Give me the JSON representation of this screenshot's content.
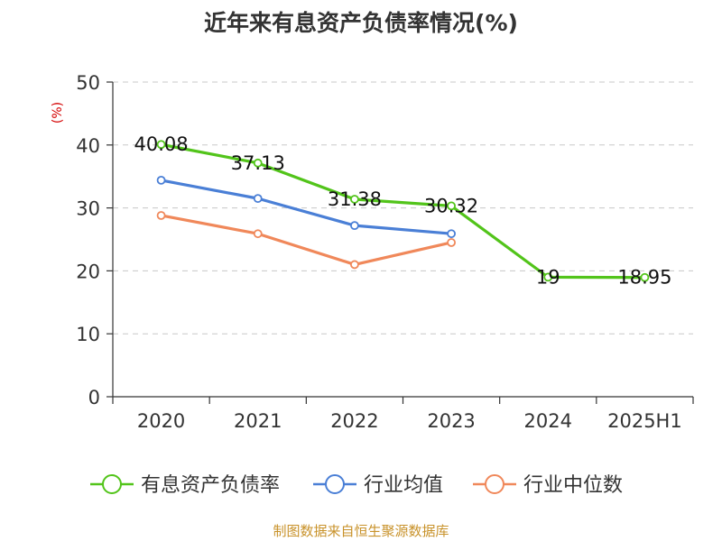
{
  "title": "近年来有息资产负债率情况(%)",
  "source": "制图数据来自恒生聚源数据库",
  "chart_data": {
    "type": "line",
    "categories": [
      "2020",
      "2021",
      "2022",
      "2023",
      "2024",
      "2025H1"
    ],
    "y_unit_label": "(%)",
    "ylim": [
      0,
      50
    ],
    "yticks": [
      0,
      10,
      20,
      30,
      40,
      50
    ],
    "grid": true,
    "legend_position": "bottom",
    "series": [
      {
        "name": "有息资产负债率",
        "color": "#52c41a",
        "values": [
          40.08,
          37.13,
          31.38,
          30.32,
          19,
          18.95
        ],
        "labels": [
          "40.08",
          "37.13",
          "31.38",
          "30.32",
          "19",
          "18.95"
        ]
      },
      {
        "name": "行业均值",
        "color": "#4a7fd6",
        "values": [
          34.4,
          31.5,
          27.2,
          25.9,
          null,
          null
        ]
      },
      {
        "name": "行业中位数",
        "color": "#f0885a",
        "values": [
          28.8,
          25.9,
          21.0,
          24.5,
          null,
          null
        ]
      }
    ]
  }
}
